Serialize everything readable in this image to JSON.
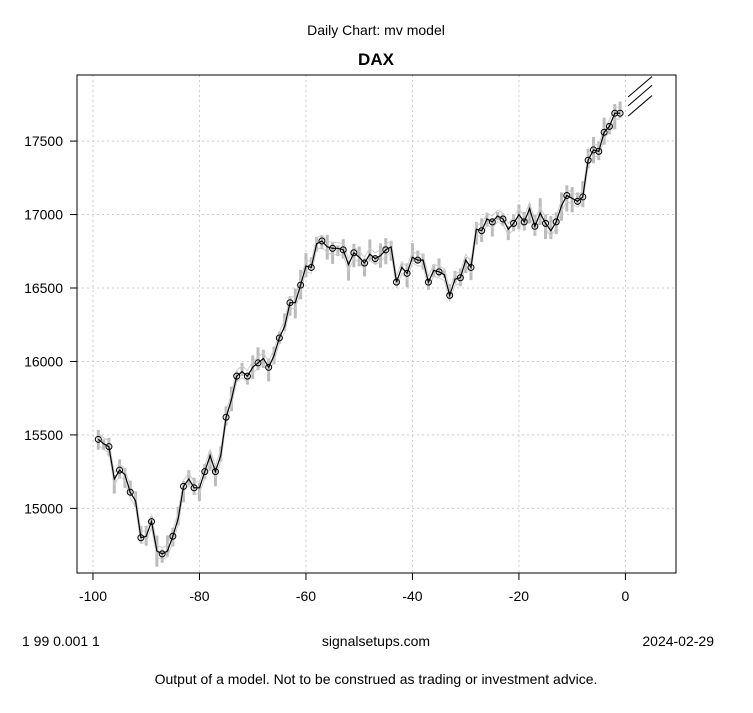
{
  "chart_data": {
    "type": "line",
    "suptitle": "Daily Chart: mv model",
    "title": "DAX",
    "xlabel": "",
    "ylabel": "",
    "xlim": [
      -103,
      9.5
    ],
    "ylim": [
      14560,
      17950
    ],
    "xticks": [
      -100,
      -80,
      -60,
      -40,
      -20,
      0
    ],
    "yticks": [
      15000,
      15500,
      16000,
      16500,
      17000,
      17500
    ],
    "grid": true,
    "x_start": -99,
    "close": [
      15470,
      15440,
      15420,
      15200,
      15260,
      15230,
      15110,
      15050,
      14800,
      14810,
      14910,
      14710,
      14690,
      14710,
      14810,
      14930,
      15150,
      15200,
      15140,
      15140,
      15250,
      15360,
      15250,
      15360,
      15620,
      15740,
      15900,
      15930,
      15900,
      15960,
      15990,
      16020,
      15960,
      16040,
      16160,
      16240,
      16400,
      16400,
      16520,
      16650,
      16640,
      16800,
      16820,
      16780,
      16770,
      16770,
      16760,
      16660,
      16740,
      16710,
      16670,
      16730,
      16700,
      16720,
      16760,
      16780,
      16540,
      16640,
      16600,
      16710,
      16690,
      16690,
      16540,
      16620,
      16610,
      16590,
      16450,
      16560,
      16570,
      16690,
      16640,
      16900,
      16890,
      16970,
      16950,
      16990,
      16970,
      16900,
      16940,
      17000,
      16950,
      17040,
      16920,
      17010,
      16940,
      16890,
      16950,
      17060,
      17130,
      17110,
      17090,
      17120,
      17370,
      17440,
      17430,
      17560,
      17600,
      17690,
      17690
    ],
    "forecast": [
      {
        "name": "upper",
        "x": [
          0.5,
          5
        ],
        "y": [
          17800,
          17940
        ]
      },
      {
        "name": "mid",
        "x": [
          0.5,
          5
        ],
        "y": [
          17740,
          17880
        ]
      },
      {
        "name": "lower",
        "x": [
          0.5,
          5
        ],
        "y": [
          17670,
          17810
        ]
      }
    ]
  },
  "footer": {
    "left": "1 99 0.001 1",
    "center": "signalsetups.com",
    "right": "2024-02-29",
    "disclaimer": "Output of a model.  Not to be construed as trading or investment advice."
  }
}
